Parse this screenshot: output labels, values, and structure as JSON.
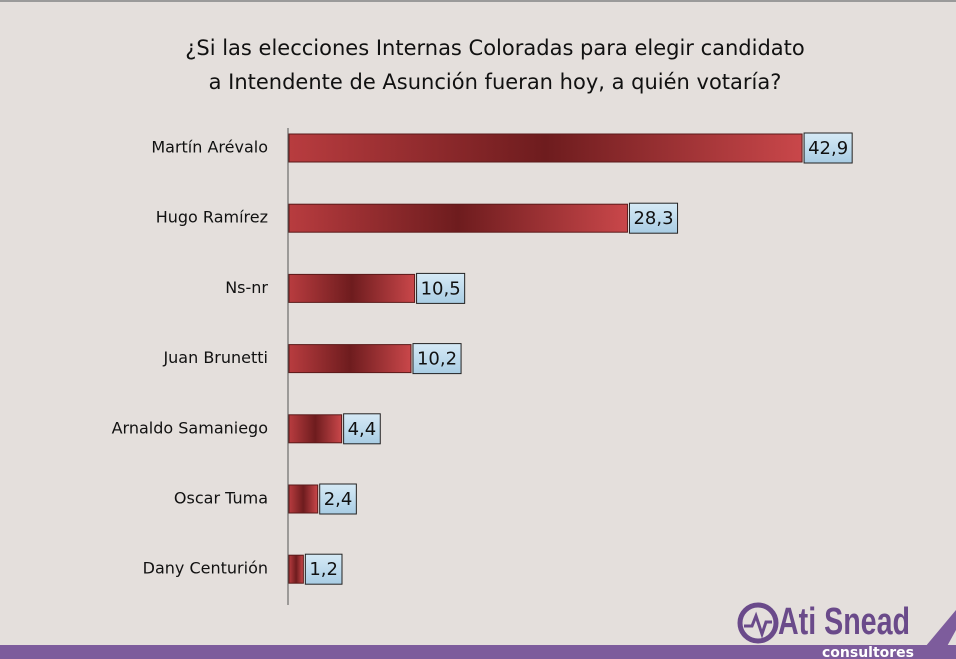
{
  "chart_data": {
    "type": "bar",
    "orientation": "horizontal",
    "title": [
      "¿Si las elecciones Internas Coloradas para elegir candidato",
      "a Intendente de Asunción fueran hoy, a quién votaría?"
    ],
    "categories": [
      "Martín Arévalo",
      "Hugo Ramírez",
      "Ns-nr",
      "Juan Brunetti",
      "Arnaldo Samaniego",
      "Oscar Tuma",
      "Dany Centurión"
    ],
    "values": [
      42.9,
      28.3,
      10.5,
      10.2,
      4.4,
      2.4,
      1.2
    ],
    "value_labels": [
      "42,9",
      "28,3",
      "10,5",
      "10,2",
      "4,4",
      "2,4",
      "1,2"
    ],
    "color": "#c9474a"
  },
  "logo": {
    "name": "Ati Snead",
    "sub": "consultores"
  }
}
